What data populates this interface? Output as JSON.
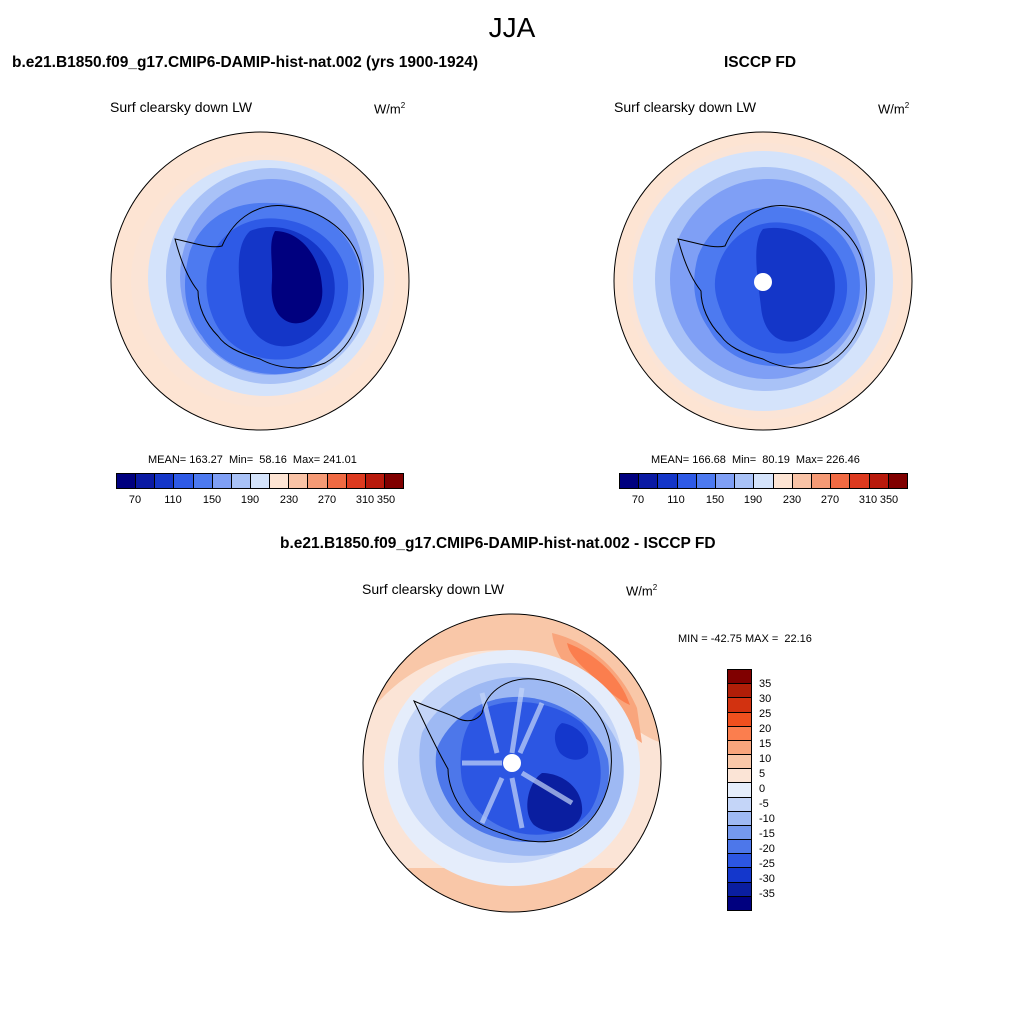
{
  "figure": {
    "season": "JJA"
  },
  "panels": [
    {
      "id": "model",
      "title": "b.e21.B1850.f09_g17.CMIP6-DAMIP-hist-nat.002 (yrs 1900-1924)",
      "variable": "Surf clearsky down LW",
      "units_base": "W/m",
      "units_exp": "2",
      "stats": "MEAN= 163.27  Min=  58.16  Max= 241.01",
      "colorbar": {
        "colors": [
          "#00007f",
          "#0a1aa3",
          "#1436c8",
          "#2e5ae6",
          "#4d7af0",
          "#7f9ff5",
          "#a9c2f7",
          "#d4e3fb",
          "#fde4d3",
          "#f9c3a6",
          "#f59a75",
          "#f06a43",
          "#dd3a1f",
          "#b81a0c",
          "#800000"
        ],
        "tick_labels": [
          "70",
          "110",
          "150",
          "190",
          "230",
          "270",
          "310",
          "350"
        ]
      }
    },
    {
      "id": "obs",
      "title": "ISCCP FD",
      "variable": "Surf clearsky down LW",
      "units_base": "W/m",
      "units_exp": "2",
      "stats": "MEAN= 166.68  Min=  80.19  Max= 226.46",
      "colorbar": {
        "colors": [
          "#00007f",
          "#0a1aa3",
          "#1436c8",
          "#2e5ae6",
          "#4d7af0",
          "#7f9ff5",
          "#a9c2f7",
          "#d4e3fb",
          "#fde4d3",
          "#f9c3a6",
          "#f59a75",
          "#f06a43",
          "#dd3a1f",
          "#b81a0c",
          "#800000"
        ],
        "tick_labels": [
          "70",
          "110",
          "150",
          "190",
          "230",
          "270",
          "310",
          "350"
        ]
      }
    },
    {
      "id": "diff",
      "title": "b.e21.B1850.f09_g17.CMIP6-DAMIP-hist-nat.002 - ISCCP FD",
      "variable": "Surf clearsky down LW",
      "units_base": "W/m",
      "units_exp": "2",
      "stats": "MIN = -42.75 MAX =  22.16",
      "colorbar": {
        "colors": [
          "#800000",
          "#b01e08",
          "#d23210",
          "#f0501e",
          "#fb7e4e",
          "#f9a57c",
          "#f9c7a8",
          "#fbe4d6",
          "#e5edfb",
          "#c4d5f8",
          "#9eb9f3",
          "#7599ee",
          "#4d77ea",
          "#2c56e3",
          "#1437cc",
          "#0a1ea0",
          "#00007f"
        ],
        "tick_labels": [
          "35",
          "30",
          "25",
          "20",
          "15",
          "10",
          "5",
          "0",
          "-5",
          "-10",
          "-15",
          "-20",
          "-25",
          "-30",
          "-35"
        ]
      }
    }
  ]
}
